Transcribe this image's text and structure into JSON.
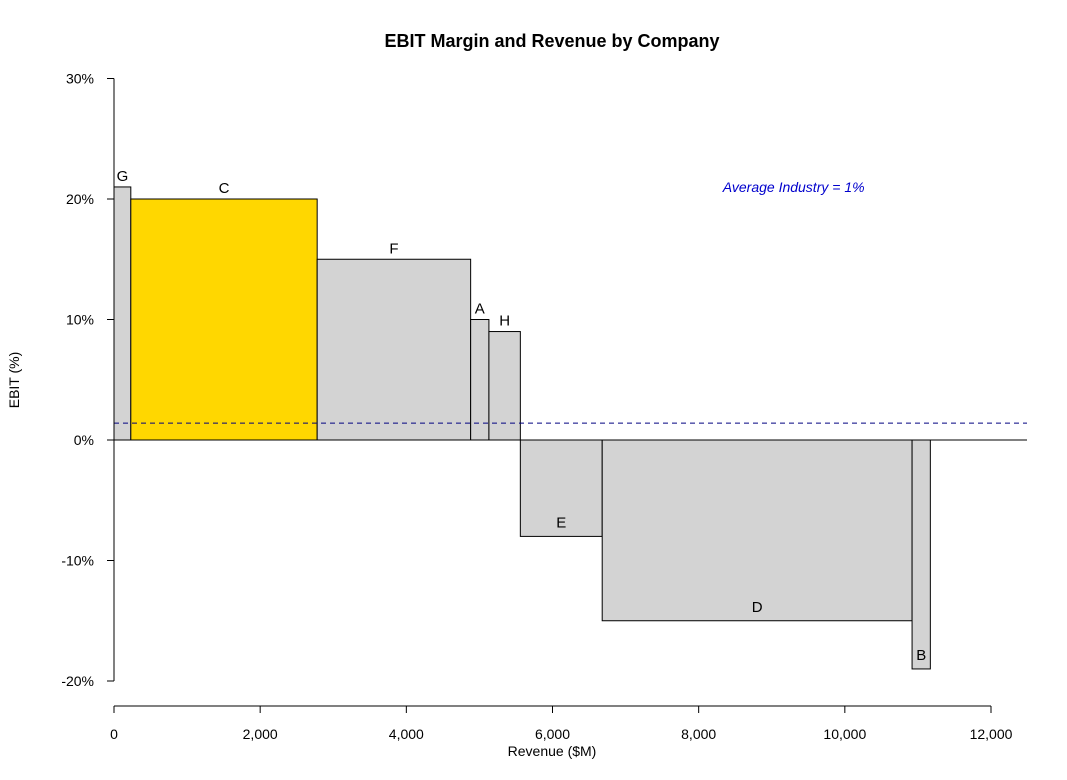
{
  "chart_data": {
    "type": "bar",
    "title": "EBIT Margin and Revenue by Company",
    "xlabel": "Revenue ($M)",
    "ylabel": "EBIT (%)",
    "xlim": [
      0,
      12000
    ],
    "ylim": [
      -20,
      30
    ],
    "x_ticks": [
      {
        "value": 0,
        "label": "0"
      },
      {
        "value": 2000,
        "label": "2,000"
      },
      {
        "value": 4000,
        "label": "4,000"
      },
      {
        "value": 6000,
        "label": "6,000"
      },
      {
        "value": 8000,
        "label": "8,000"
      },
      {
        "value": 10000,
        "label": "10,000"
      },
      {
        "value": 12000,
        "label": "12,000"
      }
    ],
    "y_ticks": [
      {
        "value": 30,
        "label": "30%"
      },
      {
        "value": 20,
        "label": "20%"
      },
      {
        "value": 10,
        "label": "10%"
      },
      {
        "value": 0,
        "label": "0%"
      },
      {
        "value": -10,
        "label": "-10%"
      },
      {
        "value": -20,
        "label": "-20%"
      }
    ],
    "bars": [
      {
        "name": "G",
        "start": 0,
        "end": 230,
        "ebit": 21,
        "color": "#d3d3d3"
      },
      {
        "name": "C",
        "start": 230,
        "end": 2780,
        "ebit": 20,
        "color": "#ffd700"
      },
      {
        "name": "F",
        "start": 2780,
        "end": 4880,
        "ebit": 15,
        "color": "#d3d3d3"
      },
      {
        "name": "A",
        "start": 4880,
        "end": 5130,
        "ebit": 10,
        "color": "#d3d3d3"
      },
      {
        "name": "H",
        "start": 5130,
        "end": 5560,
        "ebit": 9,
        "color": "#d3d3d3"
      },
      {
        "name": "E",
        "start": 5560,
        "end": 6680,
        "ebit": -8,
        "color": "#d3d3d3"
      },
      {
        "name": "D",
        "start": 6680,
        "end": 10920,
        "ebit": -15,
        "color": "#d3d3d3"
      },
      {
        "name": "B",
        "start": 10920,
        "end": 11170,
        "ebit": -19,
        "color": "#d3d3d3"
      }
    ],
    "reference_line": {
      "value": 1.4,
      "style": "dashed",
      "color": "#000080"
    },
    "annotation": {
      "text": "Average Industry = 1%",
      "color": "#0000cd",
      "at_x": 9300,
      "at_y": 21
    },
    "zero_line": true,
    "grid": false,
    "legend": "none"
  }
}
